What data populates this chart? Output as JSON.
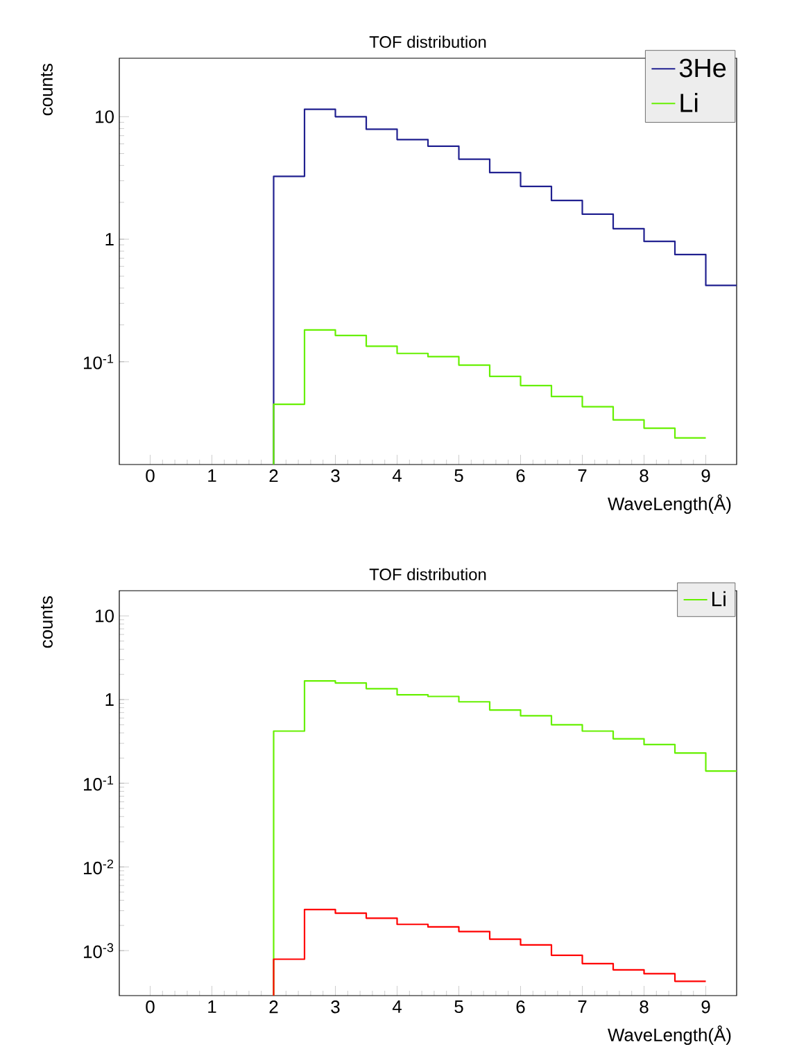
{
  "chart_data": [
    {
      "type": "histogram",
      "title": "TOF distribution",
      "xlabel": "WaveLength(Å)",
      "ylabel": "counts",
      "log": true,
      "legend": "top right",
      "bins": [
        2,
        2.5,
        3,
        3.5,
        4,
        4.5,
        5,
        5.5,
        6,
        6.5,
        7,
        7.5,
        8,
        8.5,
        9,
        9.5
      ],
      "xlim": [
        -0.5,
        9.5
      ],
      "xticks": [
        0,
        1,
        2,
        3,
        4,
        5,
        6,
        7,
        8,
        9
      ],
      "ylim": [
        0.0145,
        30
      ],
      "yticks": [
        {
          "value": 0.1,
          "label": "10$^{-1}$"
        },
        1,
        10
      ],
      "series": [
        {
          "name": "3He",
          "color": "#202090",
          "values": [
            3.26,
            11.5,
            10,
            7.9,
            6.5,
            5.75,
            4.5,
            3.5,
            2.7,
            2.07,
            1.6,
            1.22,
            0.96,
            0.75,
            0.42
          ]
        },
        {
          "name": "Li",
          "color": "#66f000",
          "bins": [
            2,
            2.5,
            3,
            3.5,
            4,
            4.5,
            5,
            5.5,
            6,
            6.5,
            7,
            7.5,
            8,
            8.5,
            9
          ],
          "values": [
            0.045,
            0.182,
            0.164,
            0.134,
            0.117,
            0.11,
            0.094,
            0.076,
            0.064,
            0.052,
            0.043,
            0.0335,
            0.0287,
            0.0239
          ]
        }
      ]
    },
    {
      "type": "histogram",
      "title": "TOF distribution",
      "xlabel": "WaveLength(Å)",
      "ylabel": "counts",
      "log": true,
      "legend": "top right",
      "bins": [
        2,
        2.5,
        3,
        3.5,
        4,
        4.5,
        5,
        5.5,
        6,
        6.5,
        7,
        7.5,
        8,
        8.5,
        9,
        9.5
      ],
      "xlim": [
        -0.5,
        9.5
      ],
      "xticks": [
        0,
        1,
        2,
        3,
        4,
        5,
        6,
        7,
        8,
        9
      ],
      "ylim": [
        0.00029,
        20
      ],
      "yticks": [
        {
          "value": 0.001,
          "label": "10$^{-3}$"
        },
        {
          "value": 0.01,
          "label": "10$^{-2}$"
        },
        {
          "value": 0.1,
          "label": "10$^{-1}$"
        },
        1,
        10
      ],
      "series": [
        {
          "name": "Li",
          "color": "#66f000",
          "values": [
            0.42,
            1.67,
            1.58,
            1.35,
            1.14,
            1.09,
            0.94,
            0.75,
            0.64,
            0.5,
            0.42,
            0.34,
            0.29,
            0.23,
            0.14
          ]
        },
        {
          "color": "#ff0000",
          "bins": [
            2,
            2.5,
            3,
            3.5,
            4,
            4.5,
            5,
            5.5,
            6,
            6.5,
            7,
            7.5,
            8,
            8.5,
            9
          ],
          "values": [
            0.00079,
            0.0031,
            0.0028,
            0.00244,
            0.00206,
            0.00192,
            0.00169,
            0.00137,
            0.00117,
            0.00088,
            0.0007,
            0.00059,
            0.00053,
            0.00043
          ]
        }
      ]
    }
  ]
}
